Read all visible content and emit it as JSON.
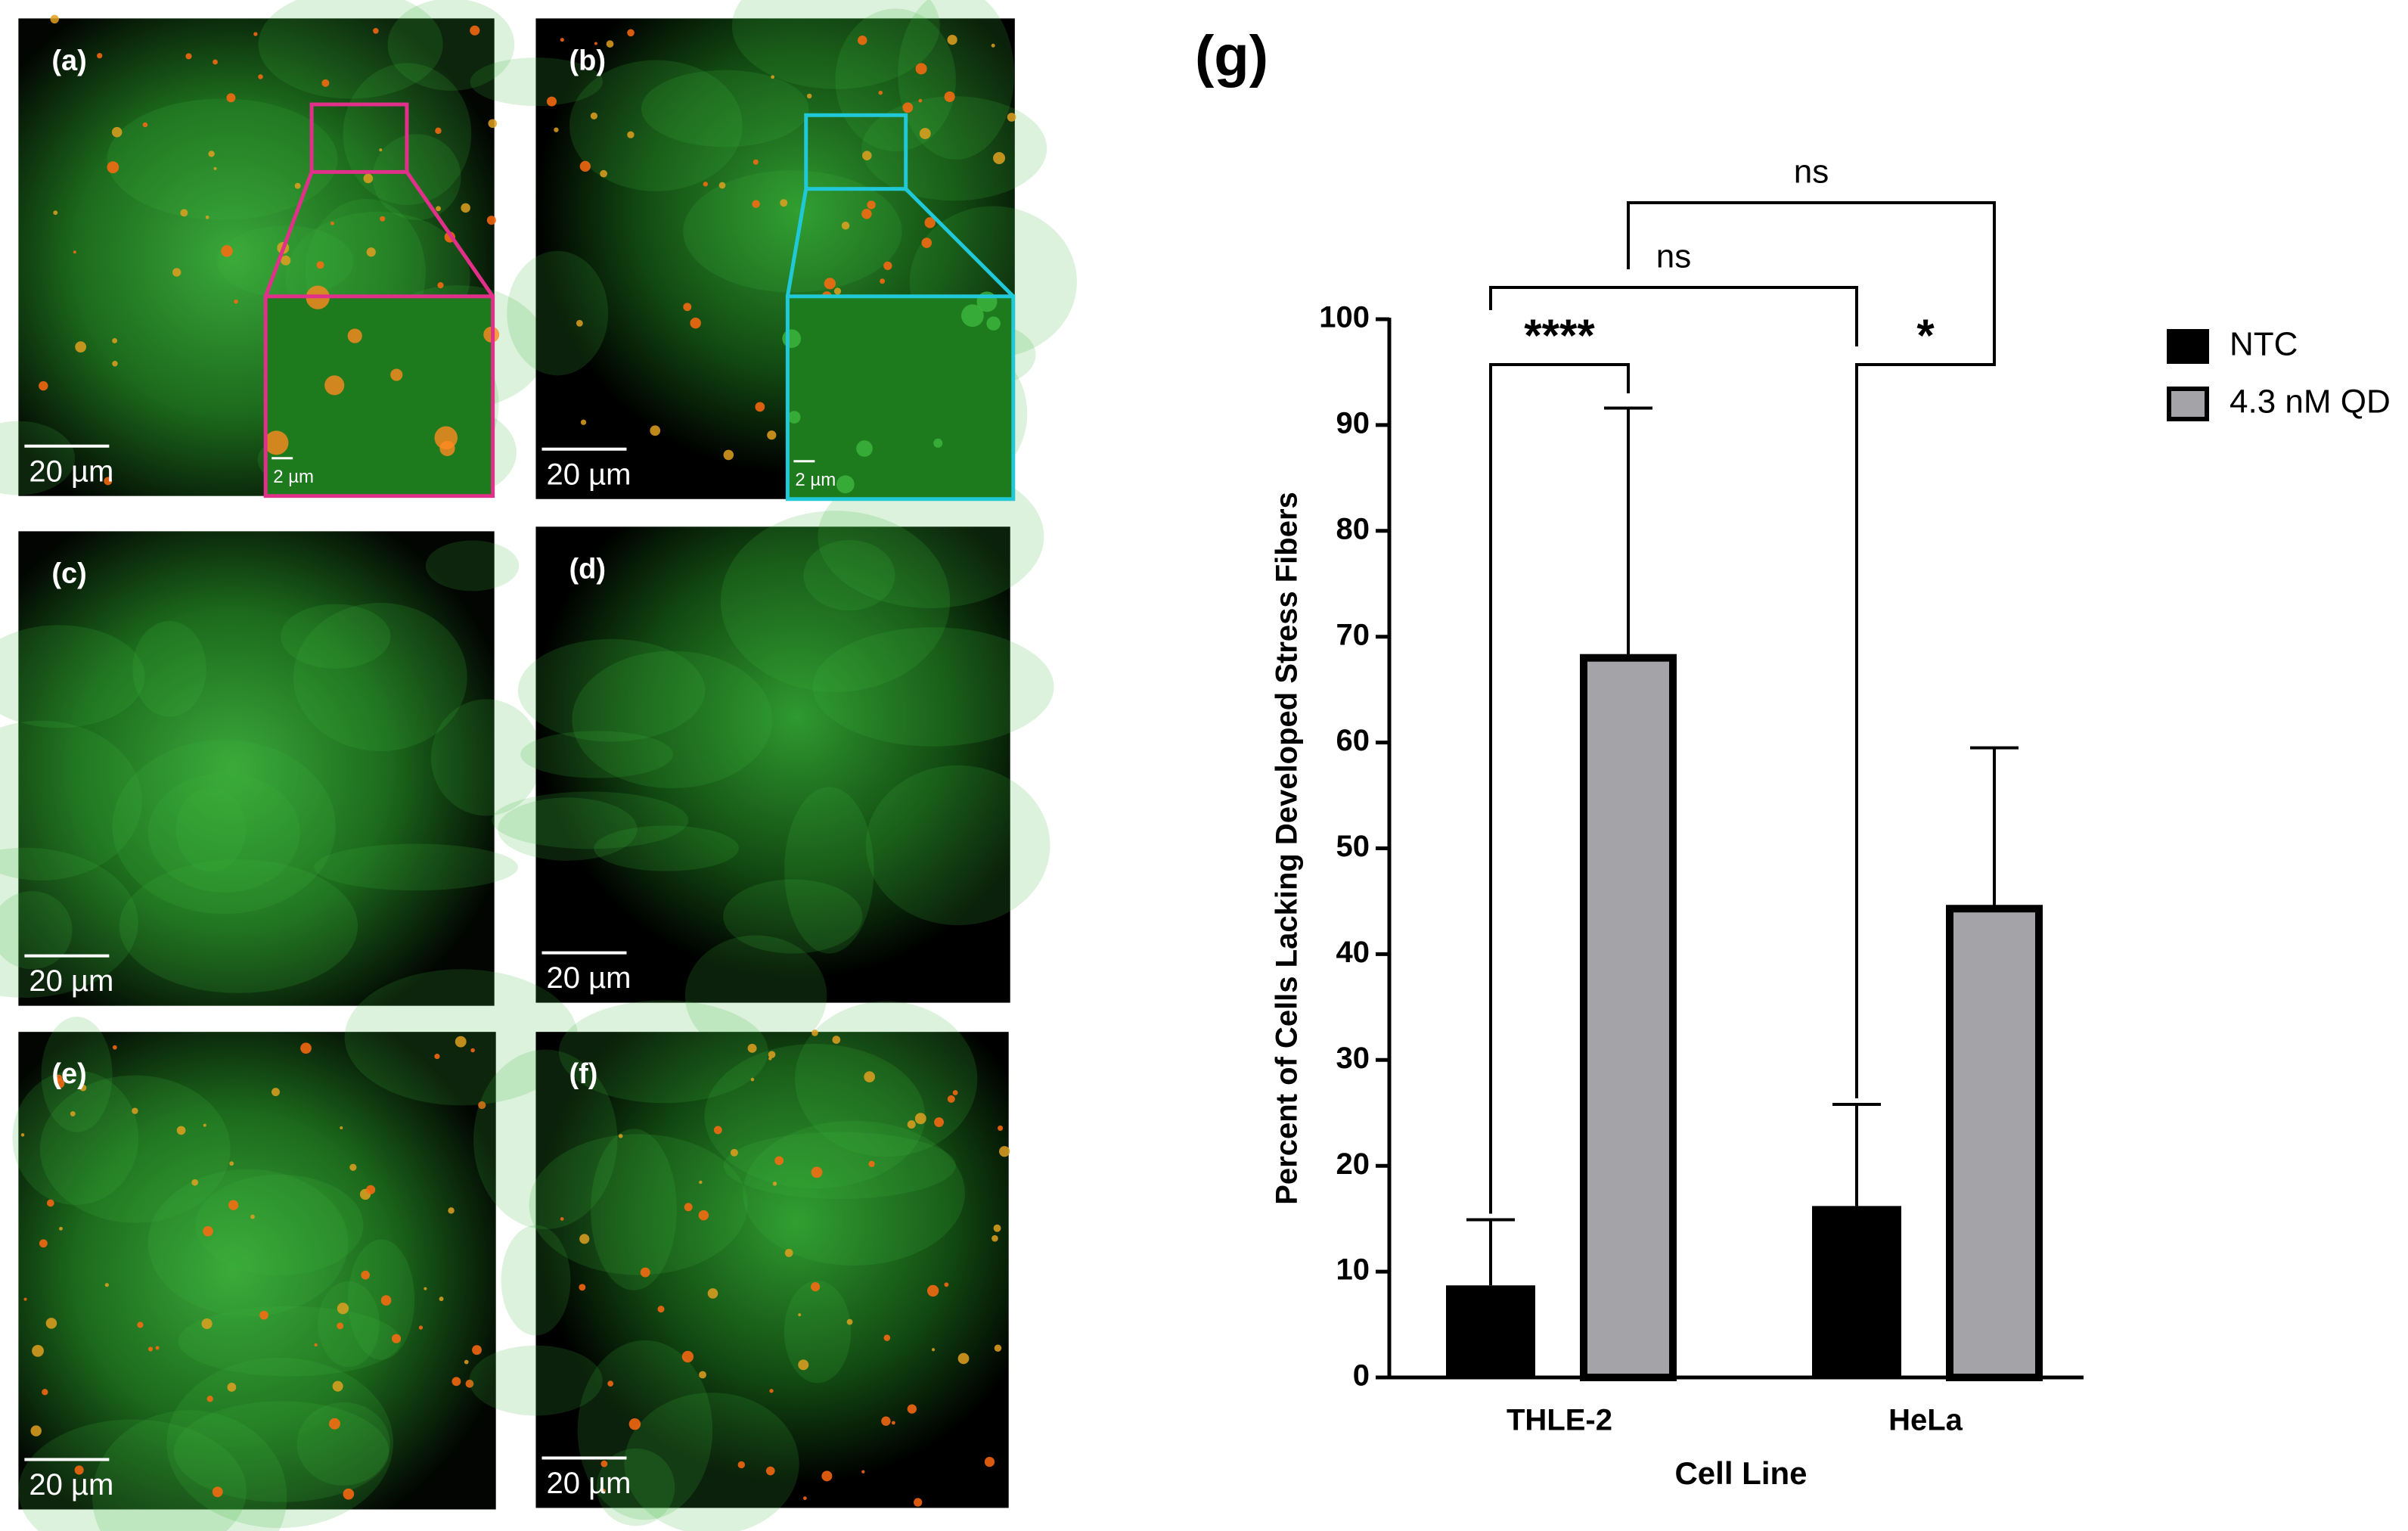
{
  "panels": [
    {
      "label": "(a)",
      "scale_bar": "20 µm",
      "inset_scale_bar": "2 µm"
    },
    {
      "label": "(b)",
      "scale_bar": "20 µm",
      "inset_scale_bar": "2 µm"
    },
    {
      "label": "(c)",
      "scale_bar": "20 µm"
    },
    {
      "label": "(d)",
      "scale_bar": "20 µm"
    },
    {
      "label": "(e)",
      "scale_bar": "20 µm"
    },
    {
      "label": "(f)",
      "scale_bar": "20 µm"
    }
  ],
  "chart_data": {
    "type": "bar",
    "panel_label": "(g)",
    "categories": [
      "THLE-2",
      "HeLa"
    ],
    "series": [
      {
        "name": "NTC",
        "color": "#000000",
        "values": [
          8.7,
          16.2
        ],
        "errors": [
          6.2,
          9.6
        ]
      },
      {
        "name": "4.3 nM QD",
        "color": "#a4a4a8",
        "values": [
          68,
          44.3
        ],
        "errors": [
          23.6,
          15.2
        ]
      }
    ],
    "xlabel": "Cell Line",
    "ylabel": "Percent of Cells Lacking Developed Stress Fibers",
    "ylim": [
      0,
      100
    ],
    "yticks": [
      0,
      10,
      20,
      30,
      40,
      50,
      60,
      70,
      80,
      90,
      100
    ],
    "legend": "upper right",
    "comparisons": [
      "****",
      "*",
      "ns",
      "ns"
    ]
  }
}
